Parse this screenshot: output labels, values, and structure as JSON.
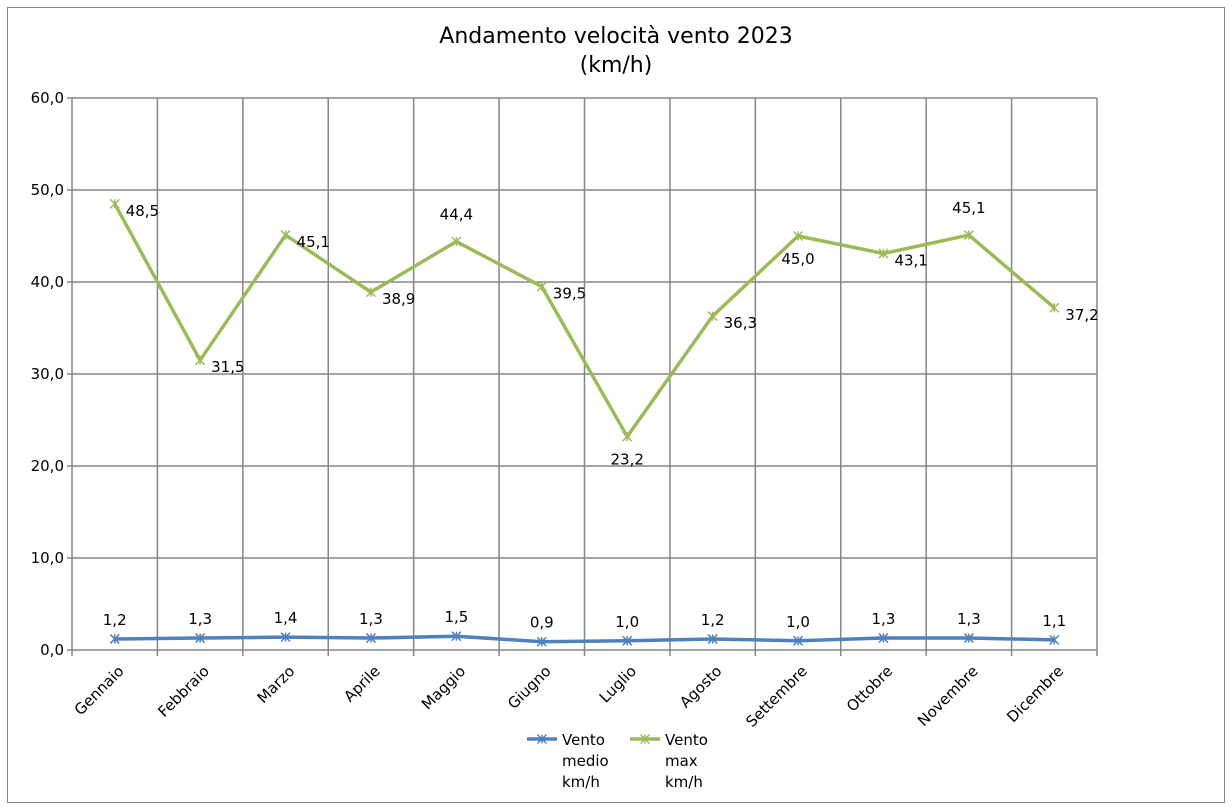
{
  "chart_data": {
    "type": "line",
    "title": [
      "Andamento velocità vento 2023",
      "(km/h)"
    ],
    "categories": [
      "Gennaio",
      "Febbraio",
      "Marzo",
      "Aprile",
      "Maggio",
      "Giugno",
      "Luglio",
      "Agosto",
      "Settembre",
      "Ottobre",
      "Novembre",
      "Dicembre"
    ],
    "ylim": [
      0,
      60
    ],
    "yticks": [
      "0,0",
      "10,0",
      "20,0",
      "30,0",
      "40,0",
      "50,0",
      "60,0"
    ],
    "grid": true,
    "legend": "bottom",
    "series": [
      {
        "name": [
          "Vento",
          "medio",
          "km/h"
        ],
        "color": "#4f81bd",
        "values": [
          1.2,
          1.3,
          1.4,
          1.3,
          1.5,
          0.9,
          1.0,
          1.2,
          1.0,
          1.3,
          1.3,
          1.1
        ],
        "labels": [
          "1,2",
          "1,3",
          "1,4",
          "1,3",
          "1,5",
          "0,9",
          "1,0",
          "1,2",
          "1,0",
          "1,3",
          "1,3",
          "1,1"
        ]
      },
      {
        "name": [
          "Vento",
          "max",
          "km/h"
        ],
        "color": "#9bbb59",
        "values": [
          48.5,
          31.5,
          45.1,
          38.9,
          44.4,
          39.5,
          23.2,
          36.3,
          45.0,
          43.1,
          45.1,
          37.2
        ],
        "labels": [
          "48,5",
          "31,5",
          "45,1",
          "38,9",
          "44,4",
          "39,5",
          "23,2",
          "36,3",
          "45,0",
          "43,1",
          "45,1",
          "37,2"
        ]
      }
    ]
  }
}
